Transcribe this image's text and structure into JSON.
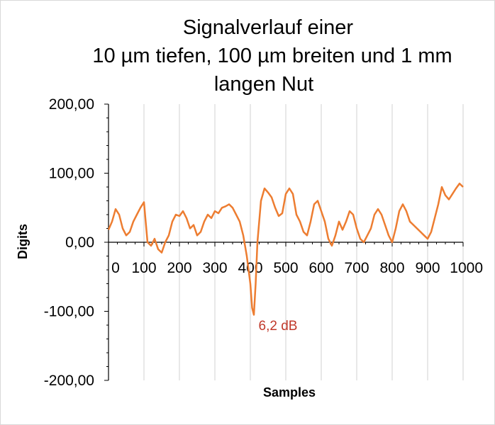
{
  "chart_data": {
    "type": "line",
    "title_lines": [
      "Signalverlauf einer",
      "10 µm tiefen, 100 µm breiten und 1 mm",
      "langen Nut"
    ],
    "xlabel": "Samples",
    "ylabel": "Digits",
    "xlim": [
      0,
      1000
    ],
    "ylim": [
      -200,
      200
    ],
    "x_ticks": [
      "0",
      "100",
      "200",
      "300",
      "400",
      "500",
      "600",
      "700",
      "800",
      "900",
      "1000"
    ],
    "y_ticks": [
      "200,00",
      "100,00",
      "0,00",
      "-100,00",
      "-200,00"
    ],
    "y_tick_values": [
      200,
      100,
      0,
      -100,
      -200
    ],
    "grid": "vertical",
    "series_color": "#ED7D31",
    "annotation": {
      "text": "6,2 dB",
      "x": 415,
      "y": -120,
      "color": "#C0392B"
    },
    "series": [
      {
        "x": [
          0,
          10,
          20,
          30,
          40,
          50,
          60,
          70,
          80,
          90,
          100,
          110,
          120,
          130,
          140,
          150,
          160,
          170,
          180,
          190,
          200,
          210,
          220,
          230,
          240,
          250,
          260,
          270,
          280,
          290,
          300,
          310,
          320,
          330,
          340,
          350,
          360,
          370,
          380,
          390,
          400,
          405,
          410,
          415,
          420,
          430,
          440,
          450,
          460,
          470,
          480,
          490,
          500,
          510,
          520,
          530,
          540,
          550,
          560,
          570,
          580,
          590,
          600,
          610,
          620,
          630,
          640,
          650,
          660,
          670,
          680,
          690,
          700,
          710,
          720,
          730,
          740,
          750,
          760,
          770,
          780,
          790,
          800,
          810,
          820,
          830,
          840,
          850,
          860,
          870,
          880,
          890,
          900,
          910,
          920,
          930,
          940,
          950,
          960,
          970,
          980,
          990,
          1000
        ],
        "values": [
          18,
          30,
          48,
          40,
          20,
          10,
          15,
          30,
          40,
          50,
          58,
          0,
          -5,
          5,
          -10,
          -15,
          0,
          10,
          30,
          40,
          38,
          45,
          35,
          20,
          25,
          10,
          15,
          30,
          40,
          35,
          45,
          42,
          50,
          52,
          55,
          50,
          40,
          30,
          10,
          -20,
          -60,
          -95,
          -105,
          -60,
          0,
          60,
          78,
          72,
          65,
          50,
          38,
          42,
          70,
          78,
          70,
          40,
          30,
          15,
          10,
          30,
          55,
          60,
          45,
          30,
          5,
          -5,
          10,
          30,
          18,
          30,
          45,
          40,
          20,
          5,
          0,
          10,
          20,
          40,
          48,
          40,
          25,
          10,
          0,
          20,
          45,
          55,
          45,
          30,
          25,
          20,
          15,
          10,
          5,
          15,
          35,
          55,
          80,
          68,
          62,
          70,
          78,
          85,
          80
        ]
      }
    ]
  }
}
